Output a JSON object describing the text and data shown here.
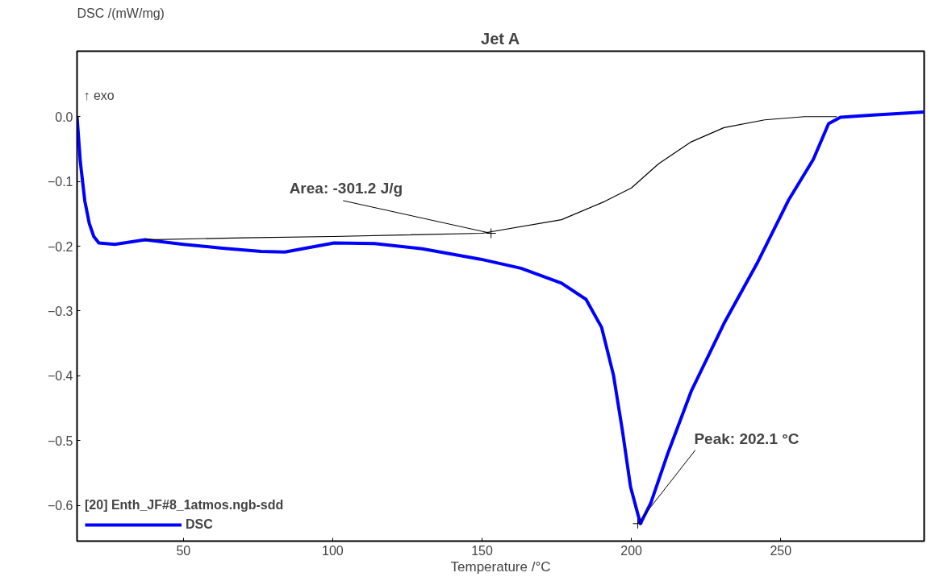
{
  "chart_data": {
    "type": "line",
    "title": "Jet A",
    "ylabel": "DSC /(mW/mg)",
    "xlabel": "Temperature /°C",
    "legend_title": "[20] Enth_JF#8_1atmos.ngb-sdd",
    "legend": "bottom left",
    "grid": false,
    "marker": "none",
    "line_style": "solid",
    "xlim": [
      14.4,
      298
    ],
    "xticks": [
      50,
      100,
      150,
      200,
      250
    ],
    "ylim": [
      -0.655,
      0.101
    ],
    "yticks": [
      {
        "value": 0,
        "label": "0.0"
      },
      -0.1,
      -0.2,
      -0.3,
      -0.4,
      -0.5,
      -0.6
    ],
    "series": [
      {
        "name": "DSC",
        "color": "#0000ff",
        "x": [
          14.4,
          15.5,
          17,
          18.5,
          20,
          21.7,
          27,
          37.2,
          50,
          63,
          76,
          84,
          92,
          100.5,
          114,
          130,
          149.5,
          163,
          176.6,
          184.8,
          190,
          194,
          197,
          199.7,
          203,
          206.5,
          212,
          220,
          231,
          242,
          252.7,
          260.9,
          266,
          270,
          279.9,
          298
        ],
        "values": [
          0.0,
          -0.07,
          -0.13,
          -0.165,
          -0.185,
          -0.195,
          -0.197,
          -0.19,
          -0.197,
          -0.203,
          -0.208,
          -0.209,
          -0.202,
          -0.195,
          -0.196,
          -0.204,
          -0.22,
          -0.234,
          -0.257,
          -0.282,
          -0.325,
          -0.399,
          -0.485,
          -0.571,
          -0.628,
          -0.596,
          -0.522,
          -0.424,
          -0.319,
          -0.227,
          -0.128,
          -0.066,
          -0.011,
          -0.001,
          0.002,
          0.007
        ]
      },
      {
        "color": "#000000",
        "x": [
          37.2,
          70,
          100,
          150,
          176.6,
          191,
          200,
          209,
          220,
          231,
          244.6,
          258,
          268.8
        ],
        "values": [
          -0.19,
          -0.187,
          -0.185,
          -0.18,
          -0.159,
          -0.131,
          -0.11,
          -0.073,
          -0.039,
          -0.017,
          -0.005,
          0.0,
          0.0
        ]
      }
    ],
    "annotations": [
      "↑ exo",
      {
        "text": "Area: -301.2 J/g",
        "x": 153,
        "y": -0.18
      },
      {
        "text": "Peak: 202.1 °C",
        "x": 202.1,
        "y": -0.628
      }
    ]
  }
}
